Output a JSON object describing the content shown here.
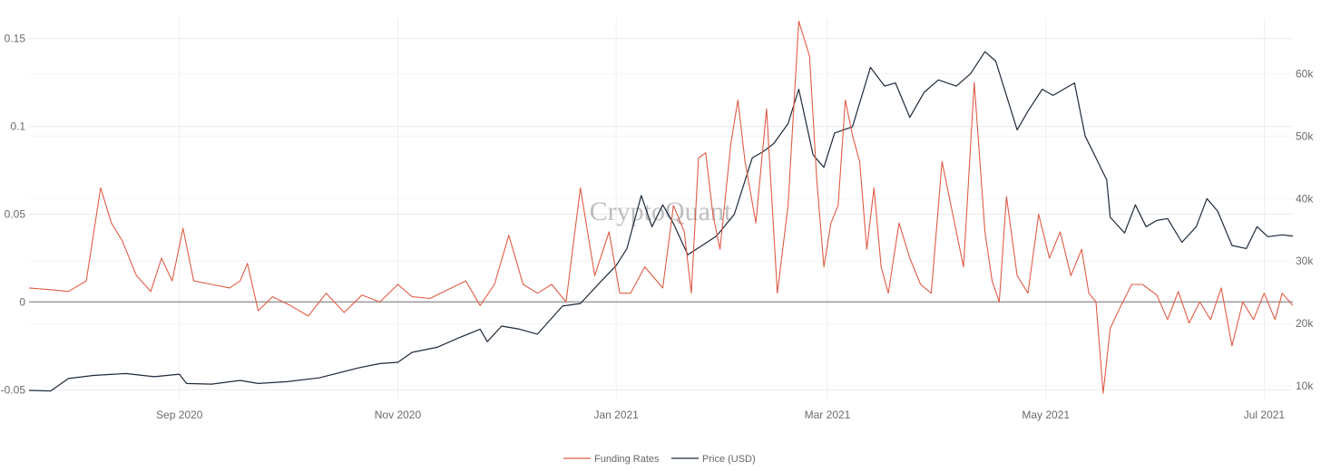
{
  "chart_data": {
    "type": "line",
    "watermark": "CryptoQuant",
    "y_left": {
      "range": [
        -0.055,
        0.155
      ],
      "ticks": [
        {
          "v": -0.05,
          "t": "-0.05"
        },
        {
          "v": 0,
          "t": "0"
        },
        {
          "v": 0.05,
          "t": "0.05"
        },
        {
          "v": 0.1,
          "t": "0.1"
        },
        {
          "v": 0.15,
          "t": "0.15"
        }
      ]
    },
    "y_right": {
      "range": [
        8000,
        67000
      ],
      "ticks": [
        {
          "v": 10000,
          "t": "10k"
        },
        {
          "v": 20000,
          "t": "20k"
        },
        {
          "v": 30000,
          "t": "30k"
        },
        {
          "v": 40000,
          "t": "40k"
        },
        {
          "v": 50000,
          "t": "50k"
        },
        {
          "v": 60000,
          "t": "60k"
        }
      ]
    },
    "x_axis": {
      "range": [
        "2020-07-21",
        "2021-07-09"
      ],
      "ticks": [
        {
          "d": "2020-09-01",
          "t": "Sep 2020"
        },
        {
          "d": "2020-11-01",
          "t": "Nov 2020"
        },
        {
          "d": "2021-01-01",
          "t": "Jan 2021"
        },
        {
          "d": "2021-03-01",
          "t": "Mar 2021"
        },
        {
          "d": "2021-05-01",
          "t": "May 2021"
        },
        {
          "d": "2021-07-01",
          "t": "Jul 2021"
        }
      ]
    },
    "grid": true,
    "zero_line": true,
    "legend_position": "bottom-center",
    "series": [
      {
        "name": "Funding Rates",
        "axis": "left",
        "color": "#e05c45",
        "points": [
          [
            "2020-07-21",
            0.008
          ],
          [
            "2020-07-27",
            0.007
          ],
          [
            "2020-08-01",
            0.006
          ],
          [
            "2020-08-06",
            0.012
          ],
          [
            "2020-08-10",
            0.065
          ],
          [
            "2020-08-13",
            0.045
          ],
          [
            "2020-08-16",
            0.035
          ],
          [
            "2020-08-20",
            0.015
          ],
          [
            "2020-08-24",
            0.006
          ],
          [
            "2020-08-27",
            0.025
          ],
          [
            "2020-08-30",
            0.012
          ],
          [
            "2020-09-02",
            0.042
          ],
          [
            "2020-09-05",
            0.012
          ],
          [
            "2020-09-10",
            0.01
          ],
          [
            "2020-09-15",
            0.008
          ],
          [
            "2020-09-18",
            0.012
          ],
          [
            "2020-09-20",
            0.022
          ],
          [
            "2020-09-23",
            -0.005
          ],
          [
            "2020-09-27",
            0.003
          ],
          [
            "2020-10-02",
            -0.002
          ],
          [
            "2020-10-07",
            -0.008
          ],
          [
            "2020-10-12",
            0.005
          ],
          [
            "2020-10-17",
            -0.006
          ],
          [
            "2020-10-22",
            0.004
          ],
          [
            "2020-10-27",
            0.0
          ],
          [
            "2020-11-01",
            0.01
          ],
          [
            "2020-11-05",
            0.003
          ],
          [
            "2020-11-10",
            0.002
          ],
          [
            "2020-11-15",
            0.007
          ],
          [
            "2020-11-20",
            0.012
          ],
          [
            "2020-11-24",
            -0.002
          ],
          [
            "2020-11-28",
            0.01
          ],
          [
            "2020-12-02",
            0.038
          ],
          [
            "2020-12-06",
            0.01
          ],
          [
            "2020-12-10",
            0.005
          ],
          [
            "2020-12-14",
            0.01
          ],
          [
            "2020-12-18",
            0.0
          ],
          [
            "2020-12-22",
            0.065
          ],
          [
            "2020-12-26",
            0.015
          ],
          [
            "2020-12-30",
            0.04
          ],
          [
            "2021-01-02",
            0.005
          ],
          [
            "2021-01-05",
            0.005
          ],
          [
            "2021-01-09",
            0.02
          ],
          [
            "2021-01-14",
            0.008
          ],
          [
            "2021-01-17",
            0.055
          ],
          [
            "2021-01-20",
            0.04
          ],
          [
            "2021-01-22",
            0.005
          ],
          [
            "2021-01-24",
            0.082
          ],
          [
            "2021-01-26",
            0.085
          ],
          [
            "2021-01-28",
            0.05
          ],
          [
            "2021-01-30",
            0.03
          ],
          [
            "2021-02-02",
            0.09
          ],
          [
            "2021-02-04",
            0.115
          ],
          [
            "2021-02-06",
            0.08
          ],
          [
            "2021-02-09",
            0.045
          ],
          [
            "2021-02-12",
            0.11
          ],
          [
            "2021-02-15",
            0.005
          ],
          [
            "2021-02-18",
            0.055
          ],
          [
            "2021-02-21",
            0.16
          ],
          [
            "2021-02-24",
            0.14
          ],
          [
            "2021-02-26",
            0.07
          ],
          [
            "2021-02-28",
            0.02
          ],
          [
            "2021-03-02",
            0.045
          ],
          [
            "2021-03-04",
            0.055
          ],
          [
            "2021-03-06",
            0.115
          ],
          [
            "2021-03-08",
            0.095
          ],
          [
            "2021-03-10",
            0.08
          ],
          [
            "2021-03-12",
            0.03
          ],
          [
            "2021-03-14",
            0.065
          ],
          [
            "2021-03-16",
            0.02
          ],
          [
            "2021-03-18",
            0.005
          ],
          [
            "2021-03-21",
            0.045
          ],
          [
            "2021-03-24",
            0.025
          ],
          [
            "2021-03-27",
            0.01
          ],
          [
            "2021-03-30",
            0.005
          ],
          [
            "2021-04-02",
            0.08
          ],
          [
            "2021-04-05",
            0.05
          ],
          [
            "2021-04-08",
            0.02
          ],
          [
            "2021-04-11",
            0.125
          ],
          [
            "2021-04-14",
            0.04
          ],
          [
            "2021-04-16",
            0.012
          ],
          [
            "2021-04-18",
            0.0
          ],
          [
            "2021-04-20",
            0.06
          ],
          [
            "2021-04-23",
            0.015
          ],
          [
            "2021-04-26",
            0.005
          ],
          [
            "2021-04-29",
            0.05
          ],
          [
            "2021-05-02",
            0.025
          ],
          [
            "2021-05-05",
            0.04
          ],
          [
            "2021-05-08",
            0.015
          ],
          [
            "2021-05-11",
            0.03
          ],
          [
            "2021-05-13",
            0.005
          ],
          [
            "2021-05-15",
            0.0
          ],
          [
            "2021-05-17",
            -0.052
          ],
          [
            "2021-05-19",
            -0.015
          ],
          [
            "2021-05-22",
            -0.002
          ],
          [
            "2021-05-25",
            0.01
          ],
          [
            "2021-05-28",
            0.01
          ],
          [
            "2021-06-01",
            0.004
          ],
          [
            "2021-06-04",
            -0.01
          ],
          [
            "2021-06-07",
            0.006
          ],
          [
            "2021-06-10",
            -0.012
          ],
          [
            "2021-06-13",
            0.0
          ],
          [
            "2021-06-16",
            -0.01
          ],
          [
            "2021-06-19",
            0.008
          ],
          [
            "2021-06-22",
            -0.025
          ],
          [
            "2021-06-25",
            0.0
          ],
          [
            "2021-06-28",
            -0.01
          ],
          [
            "2021-07-01",
            0.005
          ],
          [
            "2021-07-04",
            -0.01
          ],
          [
            "2021-07-06",
            0.005
          ],
          [
            "2021-07-09",
            -0.002
          ]
        ]
      },
      {
        "name": "Price (USD)",
        "axis": "right",
        "color": "#1e2a3a",
        "points": [
          [
            "2020-07-21",
            9300
          ],
          [
            "2020-07-27",
            9200
          ],
          [
            "2020-08-01",
            11200
          ],
          [
            "2020-08-08",
            11700
          ],
          [
            "2020-08-17",
            12000
          ],
          [
            "2020-08-25",
            11500
          ],
          [
            "2020-09-01",
            11900
          ],
          [
            "2020-09-03",
            10400
          ],
          [
            "2020-09-10",
            10300
          ],
          [
            "2020-09-18",
            10900
          ],
          [
            "2020-09-23",
            10400
          ],
          [
            "2020-10-01",
            10700
          ],
          [
            "2020-10-10",
            11300
          ],
          [
            "2020-10-21",
            12900
          ],
          [
            "2020-10-27",
            13600
          ],
          [
            "2020-11-01",
            13800
          ],
          [
            "2020-11-05",
            15400
          ],
          [
            "2020-11-12",
            16200
          ],
          [
            "2020-11-18",
            17700
          ],
          [
            "2020-11-24",
            19100
          ],
          [
            "2020-11-26",
            17100
          ],
          [
            "2020-11-30",
            19600
          ],
          [
            "2020-12-05",
            19100
          ],
          [
            "2020-12-10",
            18300
          ],
          [
            "2020-12-17",
            22800
          ],
          [
            "2020-12-22",
            23200
          ],
          [
            "2020-12-27",
            26300
          ],
          [
            "2021-01-01",
            29300
          ],
          [
            "2021-01-04",
            32000
          ],
          [
            "2021-01-08",
            40500
          ],
          [
            "2021-01-11",
            35500
          ],
          [
            "2021-01-14",
            39000
          ],
          [
            "2021-01-17",
            36000
          ],
          [
            "2021-01-21",
            31000
          ],
          [
            "2021-01-25",
            32500
          ],
          [
            "2021-01-29",
            34000
          ],
          [
            "2021-02-03",
            37500
          ],
          [
            "2021-02-08",
            46500
          ],
          [
            "2021-02-11",
            47500
          ],
          [
            "2021-02-14",
            48800
          ],
          [
            "2021-02-18",
            52000
          ],
          [
            "2021-02-21",
            57500
          ],
          [
            "2021-02-25",
            47000
          ],
          [
            "2021-02-28",
            45000
          ],
          [
            "2021-03-03",
            50500
          ],
          [
            "2021-03-08",
            51500
          ],
          [
            "2021-03-13",
            61000
          ],
          [
            "2021-03-17",
            58000
          ],
          [
            "2021-03-20",
            58500
          ],
          [
            "2021-03-24",
            53000
          ],
          [
            "2021-03-28",
            57000
          ],
          [
            "2021-04-01",
            59000
          ],
          [
            "2021-04-06",
            58000
          ],
          [
            "2021-04-10",
            60000
          ],
          [
            "2021-04-14",
            63500
          ],
          [
            "2021-04-17",
            62000
          ],
          [
            "2021-04-20",
            56500
          ],
          [
            "2021-04-23",
            51000
          ],
          [
            "2021-04-26",
            54000
          ],
          [
            "2021-04-30",
            57500
          ],
          [
            "2021-05-03",
            56500
          ],
          [
            "2021-05-06",
            57500
          ],
          [
            "2021-05-09",
            58500
          ],
          [
            "2021-05-12",
            50000
          ],
          [
            "2021-05-15",
            46500
          ],
          [
            "2021-05-18",
            43000
          ],
          [
            "2021-05-19",
            37000
          ],
          [
            "2021-05-23",
            34500
          ],
          [
            "2021-05-26",
            39000
          ],
          [
            "2021-05-29",
            35500
          ],
          [
            "2021-06-01",
            36500
          ],
          [
            "2021-06-04",
            36800
          ],
          [
            "2021-06-08",
            33000
          ],
          [
            "2021-06-12",
            35500
          ],
          [
            "2021-06-15",
            40000
          ],
          [
            "2021-06-18",
            38000
          ],
          [
            "2021-06-22",
            32500
          ],
          [
            "2021-06-26",
            32000
          ],
          [
            "2021-06-29",
            35500
          ],
          [
            "2021-07-02",
            33900
          ],
          [
            "2021-07-06",
            34200
          ],
          [
            "2021-07-09",
            34000
          ]
        ]
      }
    ]
  }
}
